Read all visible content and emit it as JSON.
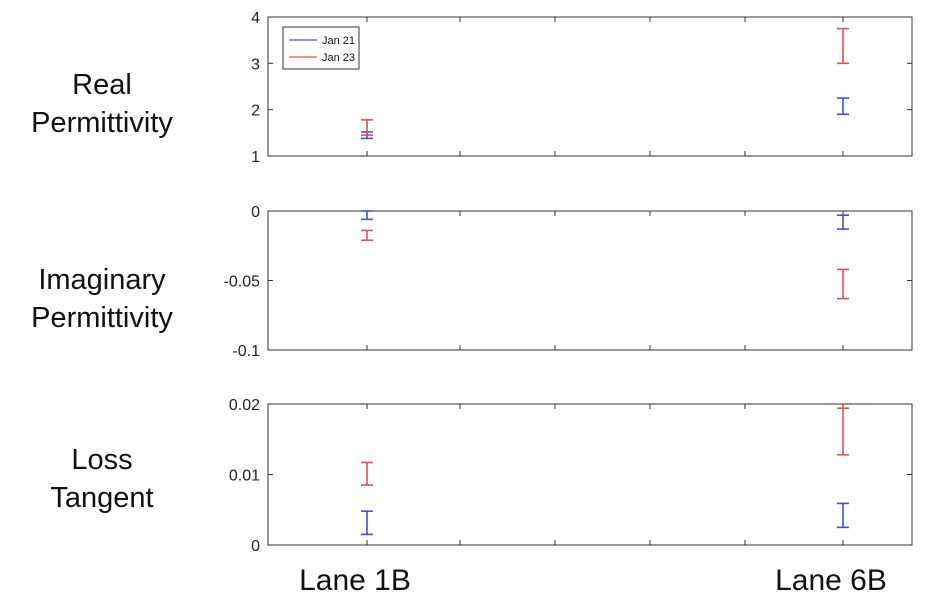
{
  "chart_data": {
    "type": "errorbar",
    "categories": [
      "Lane 1B",
      "Lane 6B"
    ],
    "legend": {
      "placement": "top-left",
      "entries": [
        {
          "name": "Jan 21",
          "color": "#4a4adf"
        },
        {
          "name": "Jan 23",
          "color": "#e05050"
        }
      ]
    },
    "panels": [
      {
        "label_lines": [
          "Real",
          "Permittivity"
        ],
        "ylim": [
          1,
          4
        ],
        "yticks": [
          1,
          2,
          3,
          4
        ],
        "ytick_labels": [
          "1",
          "2",
          "3",
          "4"
        ],
        "show_legend": true,
        "series": [
          {
            "name": "Jan 21",
            "color": "#4a4adf",
            "intervals": [
              [
                1.38,
                1.52
              ],
              [
                1.9,
                2.25
              ]
            ]
          },
          {
            "name": "Jan 23",
            "color": "#e05050",
            "intervals": [
              [
                1.45,
                1.78
              ],
              [
                3.0,
                3.75
              ]
            ]
          }
        ]
      },
      {
        "label_lines": [
          "Imaginary",
          "Permittivity"
        ],
        "ylim": [
          -0.1,
          0
        ],
        "yticks": [
          -0.1,
          -0.05,
          0
        ],
        "ytick_labels": [
          "-0.1",
          "-0.05",
          "0"
        ],
        "show_legend": false,
        "series": [
          {
            "name": "Jan 21",
            "color": "#4a4adf",
            "intervals": [
              [
                -0.006,
                0.0
              ],
              [
                -0.013,
                -0.003
              ]
            ]
          },
          {
            "name": "Jan 23",
            "color": "#e05050",
            "intervals": [
              [
                -0.021,
                -0.014
              ],
              [
                -0.063,
                -0.042
              ]
            ]
          }
        ]
      },
      {
        "label_lines": [
          "Loss",
          "Tangent"
        ],
        "ylim": [
          0,
          0.02
        ],
        "yticks": [
          0,
          0.01,
          0.02
        ],
        "ytick_labels": [
          "0",
          "0.01",
          "0.02"
        ],
        "show_legend": false,
        "series": [
          {
            "name": "Jan 21",
            "color": "#4a4adf",
            "intervals": [
              [
                0.0015,
                0.0048
              ],
              [
                0.0025,
                0.0059
              ]
            ]
          },
          {
            "name": "Jan 23",
            "color": "#e05050",
            "intervals": [
              [
                0.0085,
                0.0117
              ],
              [
                0.0128,
                0.0194
              ]
            ]
          }
        ]
      }
    ]
  }
}
